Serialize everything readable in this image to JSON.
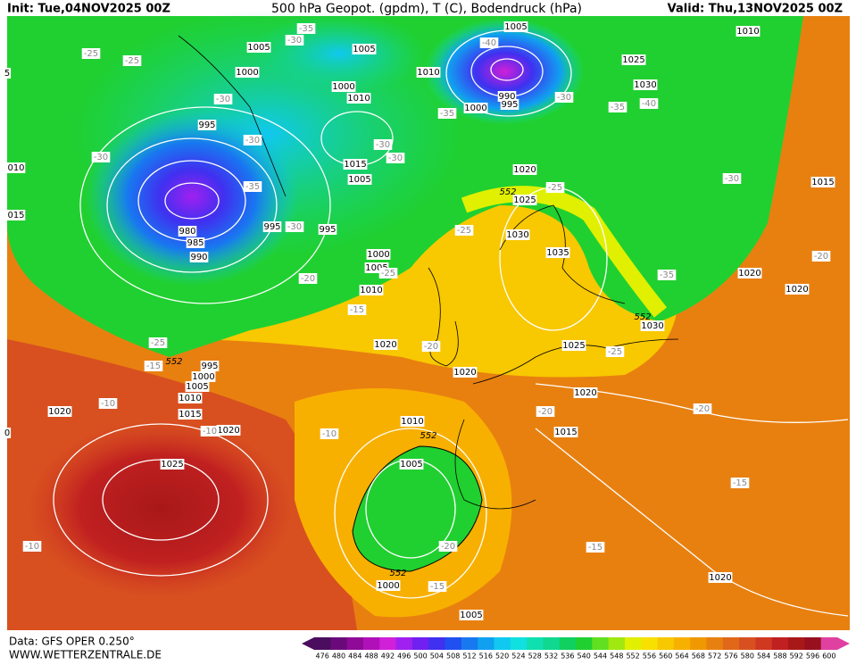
{
  "header": {
    "init": "Init: Tue,04NOV2025 00Z",
    "title": "500 hPa Geopot. (gpdm), T (C), Bodendruck (hPa)",
    "valid": "Valid: Thu,13NOV2025 00Z"
  },
  "footer": {
    "data": "Data: GFS OPER 0.250°",
    "site": "WWW.WETTERZENTRALE.DE"
  },
  "colorbar": {
    "labels": [
      476,
      480,
      484,
      488,
      492,
      496,
      500,
      504,
      508,
      512,
      516,
      520,
      524,
      528,
      532,
      536,
      540,
      544,
      548,
      552,
      556,
      560,
      564,
      568,
      572,
      576,
      580,
      584,
      588,
      592,
      596,
      600
    ],
    "colors": [
      "#4b0d5e",
      "#6a0a7a",
      "#8e0a97",
      "#b010b8",
      "#d020d8",
      "#a020f0",
      "#7020f0",
      "#4030f0",
      "#2050f0",
      "#1878f0",
      "#10a0f0",
      "#10c8f0",
      "#10e0e0",
      "#10e0b0",
      "#10d890",
      "#10d060",
      "#20d030",
      "#60e020",
      "#a0e810",
      "#e0f000",
      "#f8e000",
      "#f8c800",
      "#f8b000",
      "#f09800",
      "#e88010",
      "#e06818",
      "#d85020",
      "#d03820",
      "#c02020",
      "#a81818",
      "#981020",
      "#e040a0"
    ]
  },
  "map": {
    "pressure_labels": [
      "1005",
      "1000",
      "995",
      "1005",
      "1000",
      "1010",
      "1010",
      "1005",
      "1000",
      "990",
      "995",
      "1010",
      "1025",
      "1030",
      "1015",
      "1005",
      "1020",
      "1025",
      "1030",
      "1035",
      "995",
      "995",
      "980",
      "985",
      "990",
      "1000",
      "1005",
      "1010",
      "1015",
      "1020",
      "1020",
      "1030",
      "1025",
      "1020",
      "1020",
      "1020",
      "995",
      "1000",
      "1005",
      "1010",
      "1015",
      "1020",
      "1020",
      "1010",
      "1015",
      "1025",
      "1005",
      "1000",
      "1005",
      "1020",
      "015",
      "010",
      "5",
      "0"
    ],
    "temperature_labels": [
      "-25",
      "-25",
      "-30",
      "-30",
      "-35",
      "-30",
      "-35",
      "-30",
      "-40",
      "-30",
      "-35",
      "-35",
      "-40",
      "-30",
      "-30",
      "-30",
      "-30",
      "-25",
      "-25",
      "-20",
      "-20",
      "-25",
      "-35",
      "-15",
      "-25",
      "-15",
      "-20",
      "-25",
      "-10",
      "-10",
      "-10",
      "-20",
      "-20",
      "-15",
      "-20",
      "-15",
      "-15",
      "-10"
    ],
    "geopotential_labels": [
      "552",
      "552",
      "552",
      "552",
      "552"
    ]
  }
}
